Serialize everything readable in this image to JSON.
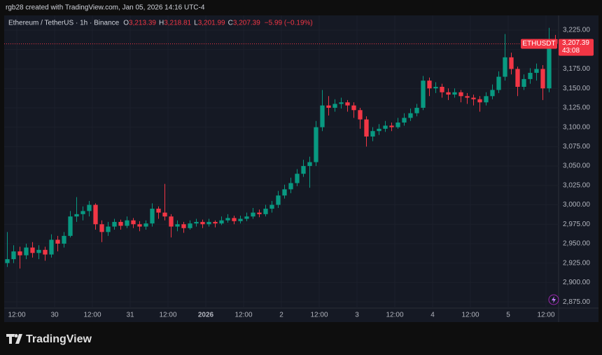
{
  "header": {
    "credit": "rgb28 created with TradingView.com, Jan 05, 2026 14:16 UTC-4",
    "brand": "TradingView"
  },
  "chart_data": {
    "type": "candlestick",
    "title": "Ethereum / TetherUS · 1h · Binance",
    "legend": [
      {
        "label": "O",
        "value": "3,213.39"
      },
      {
        "label": "H",
        "value": "3,218.81"
      },
      {
        "label": "L",
        "value": "3,201.99"
      },
      {
        "label": "C",
        "value": "3,207.39"
      }
    ],
    "change": "−5.99 (−0.19%)",
    "up_color": "#089981",
    "down_color": "#f23645",
    "grid": true,
    "price_line": {
      "value": 3207.39,
      "label": "3,207.39",
      "symbol": "ETHUSDT",
      "countdown": "43:08",
      "color": "#f23645"
    },
    "ylim": [
      2867,
      3244
    ],
    "yticks": [
      {
        "value": 2875,
        "label": "2,875.00"
      },
      {
        "value": 2900,
        "label": "2,900.00"
      },
      {
        "value": 2925,
        "label": "2,925.00"
      },
      {
        "value": 2950,
        "label": "2,950.00"
      },
      {
        "value": 2975,
        "label": "2,975.00"
      },
      {
        "value": 3000,
        "label": "3,000.00"
      },
      {
        "value": 3025,
        "label": "3,025.00"
      },
      {
        "value": 3050,
        "label": "3,050.00"
      },
      {
        "value": 3075,
        "label": "3,075.00"
      },
      {
        "value": 3100,
        "label": "3,100.00"
      },
      {
        "value": 3125,
        "label": "3,125.00"
      },
      {
        "value": 3150,
        "label": "3,150.00"
      },
      {
        "value": 3175,
        "label": "3,175.00"
      },
      {
        "value": 3200,
        "label": "3,200.00"
      },
      {
        "value": 3225,
        "label": "3,225.00"
      }
    ],
    "xlim": [
      -0.5,
      87.5
    ],
    "xticks": [
      {
        "value": 1.5,
        "label": "12:00"
      },
      {
        "value": 7.5,
        "label": "30"
      },
      {
        "value": 13.5,
        "label": "12:00"
      },
      {
        "value": 19.5,
        "label": "31"
      },
      {
        "value": 25.5,
        "label": "12:00"
      },
      {
        "value": 31.5,
        "label": "2026"
      },
      {
        "value": 37.5,
        "label": "12:00"
      },
      {
        "value": 43.5,
        "label": "2"
      },
      {
        "value": 49.5,
        "label": "12:00"
      },
      {
        "value": 55.5,
        "label": "3"
      },
      {
        "value": 61.5,
        "label": "12:00"
      },
      {
        "value": 67.5,
        "label": "4"
      },
      {
        "value": 73.5,
        "label": "12:00"
      },
      {
        "value": 79.5,
        "label": "5"
      },
      {
        "value": 85.5,
        "label": "12:00"
      }
    ],
    "series": [
      {
        "name": "ETHUSDT",
        "ohlc": [
          [
            2925,
            2965,
            2920,
            2930
          ],
          [
            2930,
            2948,
            2925,
            2940
          ],
          [
            2940,
            2946,
            2918,
            2935
          ],
          [
            2935,
            2950,
            2930,
            2945
          ],
          [
            2945,
            2952,
            2932,
            2938
          ],
          [
            2938,
            2948,
            2930,
            2942
          ],
          [
            2942,
            2946,
            2928,
            2936
          ],
          [
            2936,
            2962,
            2932,
            2955
          ],
          [
            2955,
            2960,
            2940,
            2950
          ],
          [
            2950,
            2965,
            2945,
            2960
          ],
          [
            2960,
            2992,
            2958,
            2985
          ],
          [
            2985,
            3010,
            2978,
            2988
          ],
          [
            2988,
            2998,
            2980,
            2992
          ],
          [
            2992,
            3005,
            2985,
            3000
          ],
          [
            3000,
            3002,
            2968,
            2975
          ],
          [
            2975,
            2980,
            2952,
            2965
          ],
          [
            2965,
            2978,
            2960,
            2972
          ],
          [
            2972,
            2982,
            2968,
            2978
          ],
          [
            2978,
            2981,
            2968,
            2973
          ],
          [
            2973,
            2985,
            2970,
            2980
          ],
          [
            2980,
            2983,
            2970,
            2975
          ],
          [
            2975,
            2979,
            2966,
            2972
          ],
          [
            2972,
            2980,
            2968,
            2976
          ],
          [
            2976,
            3002,
            2972,
            2995
          ],
          [
            2995,
            2998,
            2982,
            2990
          ],
          [
            2990,
            3027,
            2980,
            2985
          ],
          [
            2985,
            2988,
            2958,
            2972
          ],
          [
            2972,
            2980,
            2966,
            2975
          ],
          [
            2975,
            2978,
            2964,
            2970
          ],
          [
            2970,
            2980,
            2968,
            2976
          ],
          [
            2976,
            2982,
            2972,
            2978
          ],
          [
            2978,
            2981,
            2970,
            2975
          ],
          [
            2975,
            2982,
            2972,
            2978
          ],
          [
            2978,
            2980,
            2971,
            2976
          ],
          [
            2976,
            2985,
            2974,
            2980
          ],
          [
            2980,
            2988,
            2977,
            2983
          ],
          [
            2983,
            2986,
            2975,
            2979
          ],
          [
            2979,
            2986,
            2976,
            2982
          ],
          [
            2982,
            2990,
            2979,
            2985
          ],
          [
            2985,
            2996,
            2982,
            2990
          ],
          [
            2990,
            2994,
            2984,
            2988
          ],
          [
            2988,
            3000,
            2985,
            2995
          ],
          [
            2995,
            3005,
            2990,
            3000
          ],
          [
            3000,
            3018,
            2996,
            3012
          ],
          [
            3012,
            3026,
            3008,
            3020
          ],
          [
            3020,
            3035,
            3015,
            3028
          ],
          [
            3028,
            3046,
            3024,
            3040
          ],
          [
            3040,
            3058,
            3036,
            3050
          ],
          [
            3050,
            3062,
            3022,
            3055
          ],
          [
            3055,
            3108,
            3050,
            3100
          ],
          [
            3100,
            3148,
            3095,
            3128
          ],
          [
            3128,
            3140,
            3115,
            3125
          ],
          [
            3125,
            3136,
            3120,
            3130
          ],
          [
            3130,
            3138,
            3124,
            3132
          ],
          [
            3132,
            3135,
            3120,
            3128
          ],
          [
            3128,
            3132,
            3112,
            3122
          ],
          [
            3122,
            3125,
            3098,
            3110
          ],
          [
            3110,
            3114,
            3075,
            3088
          ],
          [
            3088,
            3100,
            3082,
            3095
          ],
          [
            3095,
            3104,
            3090,
            3098
          ],
          [
            3098,
            3108,
            3094,
            3102
          ],
          [
            3102,
            3106,
            3095,
            3100
          ],
          [
            3100,
            3112,
            3098,
            3106
          ],
          [
            3106,
            3118,
            3102,
            3112
          ],
          [
            3112,
            3124,
            3108,
            3118
          ],
          [
            3118,
            3130,
            3114,
            3125
          ],
          [
            3125,
            3166,
            3122,
            3160
          ],
          [
            3160,
            3164,
            3140,
            3150
          ],
          [
            3150,
            3158,
            3144,
            3152
          ],
          [
            3152,
            3156,
            3138,
            3145
          ],
          [
            3145,
            3150,
            3135,
            3142
          ],
          [
            3142,
            3150,
            3138,
            3145
          ],
          [
            3145,
            3148,
            3132,
            3140
          ],
          [
            3140,
            3144,
            3130,
            3138
          ],
          [
            3138,
            3142,
            3128,
            3136
          ],
          [
            3136,
            3140,
            3120,
            3132
          ],
          [
            3132,
            3145,
            3128,
            3140
          ],
          [
            3140,
            3155,
            3136,
            3148
          ],
          [
            3148,
            3172,
            3144,
            3165
          ],
          [
            3165,
            3220,
            3160,
            3190
          ],
          [
            3190,
            3196,
            3168,
            3175
          ],
          [
            3175,
            3178,
            3140,
            3152
          ],
          [
            3152,
            3168,
            3148,
            3162
          ],
          [
            3162,
            3176,
            3156,
            3170
          ],
          [
            3170,
            3182,
            3160,
            3175
          ],
          [
            3175,
            3180,
            3135,
            3150
          ],
          [
            3150,
            3228,
            3145,
            3213.39
          ],
          [
            3213.39,
            3218.81,
            3201.99,
            3207.39
          ]
        ]
      }
    ]
  }
}
